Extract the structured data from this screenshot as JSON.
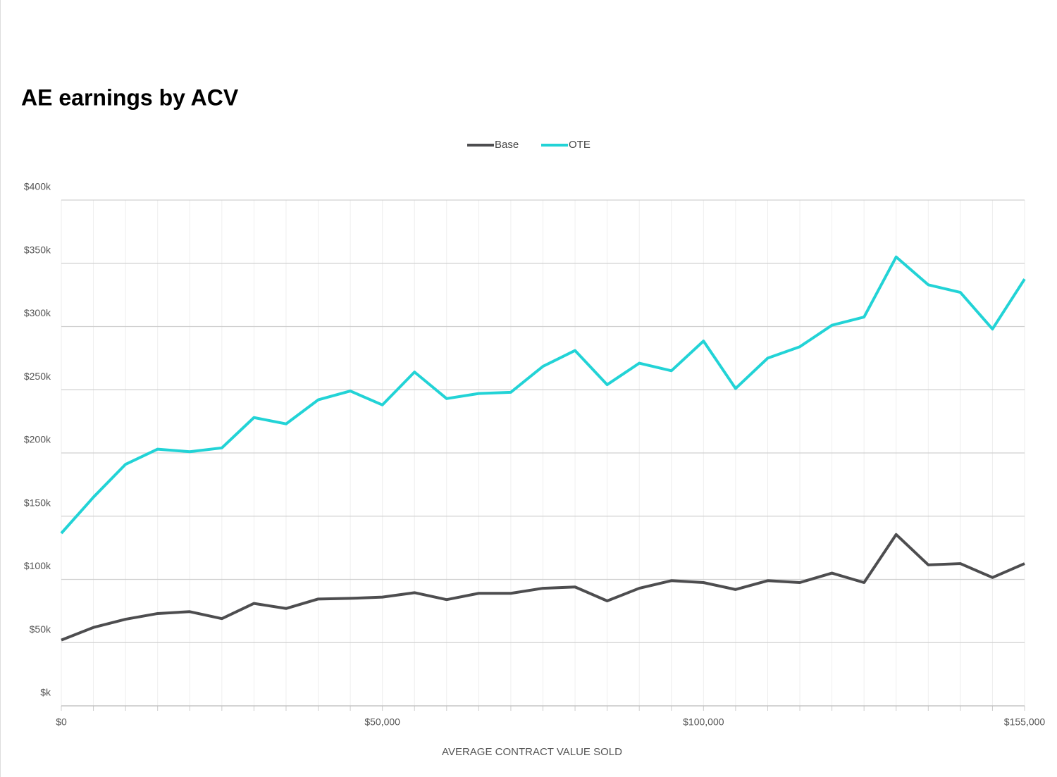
{
  "chart_data": {
    "type": "line",
    "title": "AE earnings by ACV",
    "x_label": "AVERAGE CONTRACT VALUE SOLD",
    "categories": [
      "$0",
      null,
      null,
      null,
      null,
      null,
      null,
      null,
      null,
      null,
      "$50,000",
      null,
      null,
      null,
      null,
      null,
      null,
      null,
      null,
      null,
      "$100,000",
      null,
      null,
      null,
      null,
      null,
      null,
      null,
      null,
      null,
      "$155,000"
    ],
    "series": [
      {
        "name": "Base",
        "color": "#4d4d4f",
        "values": [
          52,
          62,
          68.5,
          73,
          74.5,
          69,
          81,
          77,
          84.5,
          85,
          86,
          89.5,
          84,
          89,
          89,
          93,
          94,
          83,
          93,
          99,
          97.5,
          92,
          99,
          97.5,
          105,
          97.5,
          135.5,
          111.5,
          112.5,
          101.5,
          112.5
        ]
      },
      {
        "name": "OTE",
        "color": "#22d3d6",
        "values": [
          136.5,
          165,
          191,
          203,
          201,
          204,
          228,
          223,
          242,
          249,
          238,
          264,
          243,
          247,
          248,
          268.5,
          281,
          254,
          271,
          265,
          288.5,
          251,
          275,
          284,
          301,
          307.5,
          355,
          333,
          327,
          298,
          337.5
        ]
      }
    ],
    "ylim": [
      0,
      400
    ],
    "yticks": [
      {
        "value": 0,
        "label": "$k"
      },
      {
        "value": 50,
        "label": "$50k"
      },
      {
        "value": 100,
        "label": "$100k"
      },
      {
        "value": 150,
        "label": "$150k"
      },
      {
        "value": 200,
        "label": "$200k"
      },
      {
        "value": 250,
        "label": "$250k"
      },
      {
        "value": 300,
        "label": "$300k"
      },
      {
        "value": 350,
        "label": "$350k"
      },
      {
        "value": 400,
        "label": "$400k"
      }
    ],
    "grid": true,
    "legend": "top"
  }
}
